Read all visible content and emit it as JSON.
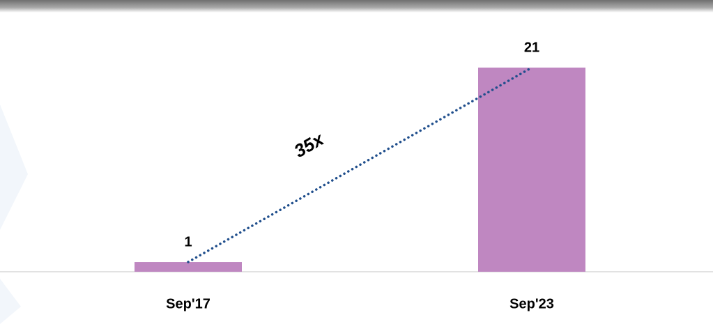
{
  "chart_data": {
    "type": "bar",
    "categories": [
      "Sep'17",
      "Sep'23"
    ],
    "values": [
      1,
      21
    ],
    "color": "#bf87c1",
    "annotation": "35x",
    "trend_color": "#1f4e8c"
  }
}
